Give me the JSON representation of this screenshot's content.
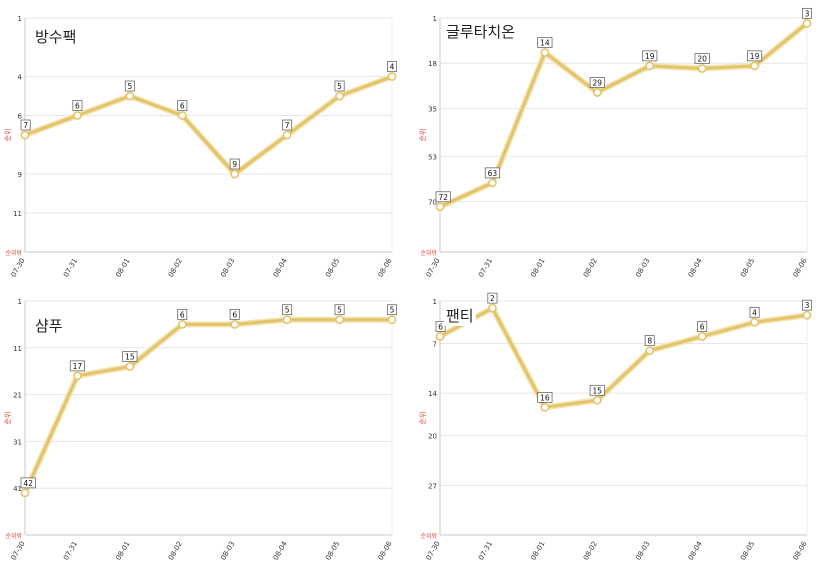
{
  "colors": {
    "line": "#e3c46a",
    "line_halo": "#f3e4b2",
    "axis_label": "#e0453a",
    "grid": "#e6e6e6",
    "axis": "#c8c8c8"
  },
  "chart_data": [
    {
      "type": "line",
      "title": "방수팩",
      "ylabel": "순위",
      "y_min_label": "순위밖",
      "reversed_y": true,
      "ylim": [
        1,
        13
      ],
      "yticks": [
        1,
        4,
        6,
        9,
        11
      ],
      "x": [
        "07-30",
        "07-31",
        "08-01",
        "08-02",
        "08-03",
        "08-04",
        "08-05",
        "08-06"
      ],
      "values": [
        7,
        6,
        5,
        6,
        9,
        7,
        5,
        4
      ]
    },
    {
      "type": "line",
      "title": "글루타치온",
      "ylabel": "순위",
      "y_min_label": "순위밖",
      "reversed_y": true,
      "ylim": [
        1,
        89
      ],
      "yticks": [
        1,
        18,
        35,
        53,
        70
      ],
      "x": [
        "07-30",
        "07-31",
        "08-01",
        "08-02",
        "08-03",
        "08-04",
        "08-05",
        "08-06"
      ],
      "values": [
        72,
        63,
        14,
        29,
        19,
        20,
        19,
        3
      ]
    },
    {
      "type": "line",
      "title": "샴푸",
      "ylabel": "순위",
      "y_min_label": "순위밖",
      "reversed_y": true,
      "ylim": [
        1,
        51
      ],
      "yticks": [
        1,
        11,
        21,
        31,
        41
      ],
      "x": [
        "07-30",
        "07-31",
        "08-01",
        "08-02",
        "08-03",
        "08-04",
        "08-05",
        "08-06"
      ],
      "values": [
        42,
        17,
        15,
        6,
        6,
        5,
        5,
        5
      ]
    },
    {
      "type": "line",
      "title": "팬티",
      "ylabel": "순위",
      "y_min_label": "순위밖",
      "reversed_y": true,
      "ylim": [
        1,
        34
      ],
      "yticks": [
        1,
        7,
        14,
        20,
        27
      ],
      "x": [
        "07-30",
        "07-31",
        "08-01",
        "08-02",
        "08-03",
        "08-04",
        "08-05",
        "08-06"
      ],
      "values": [
        6,
        2,
        16,
        15,
        8,
        6,
        4,
        3
      ]
    }
  ]
}
